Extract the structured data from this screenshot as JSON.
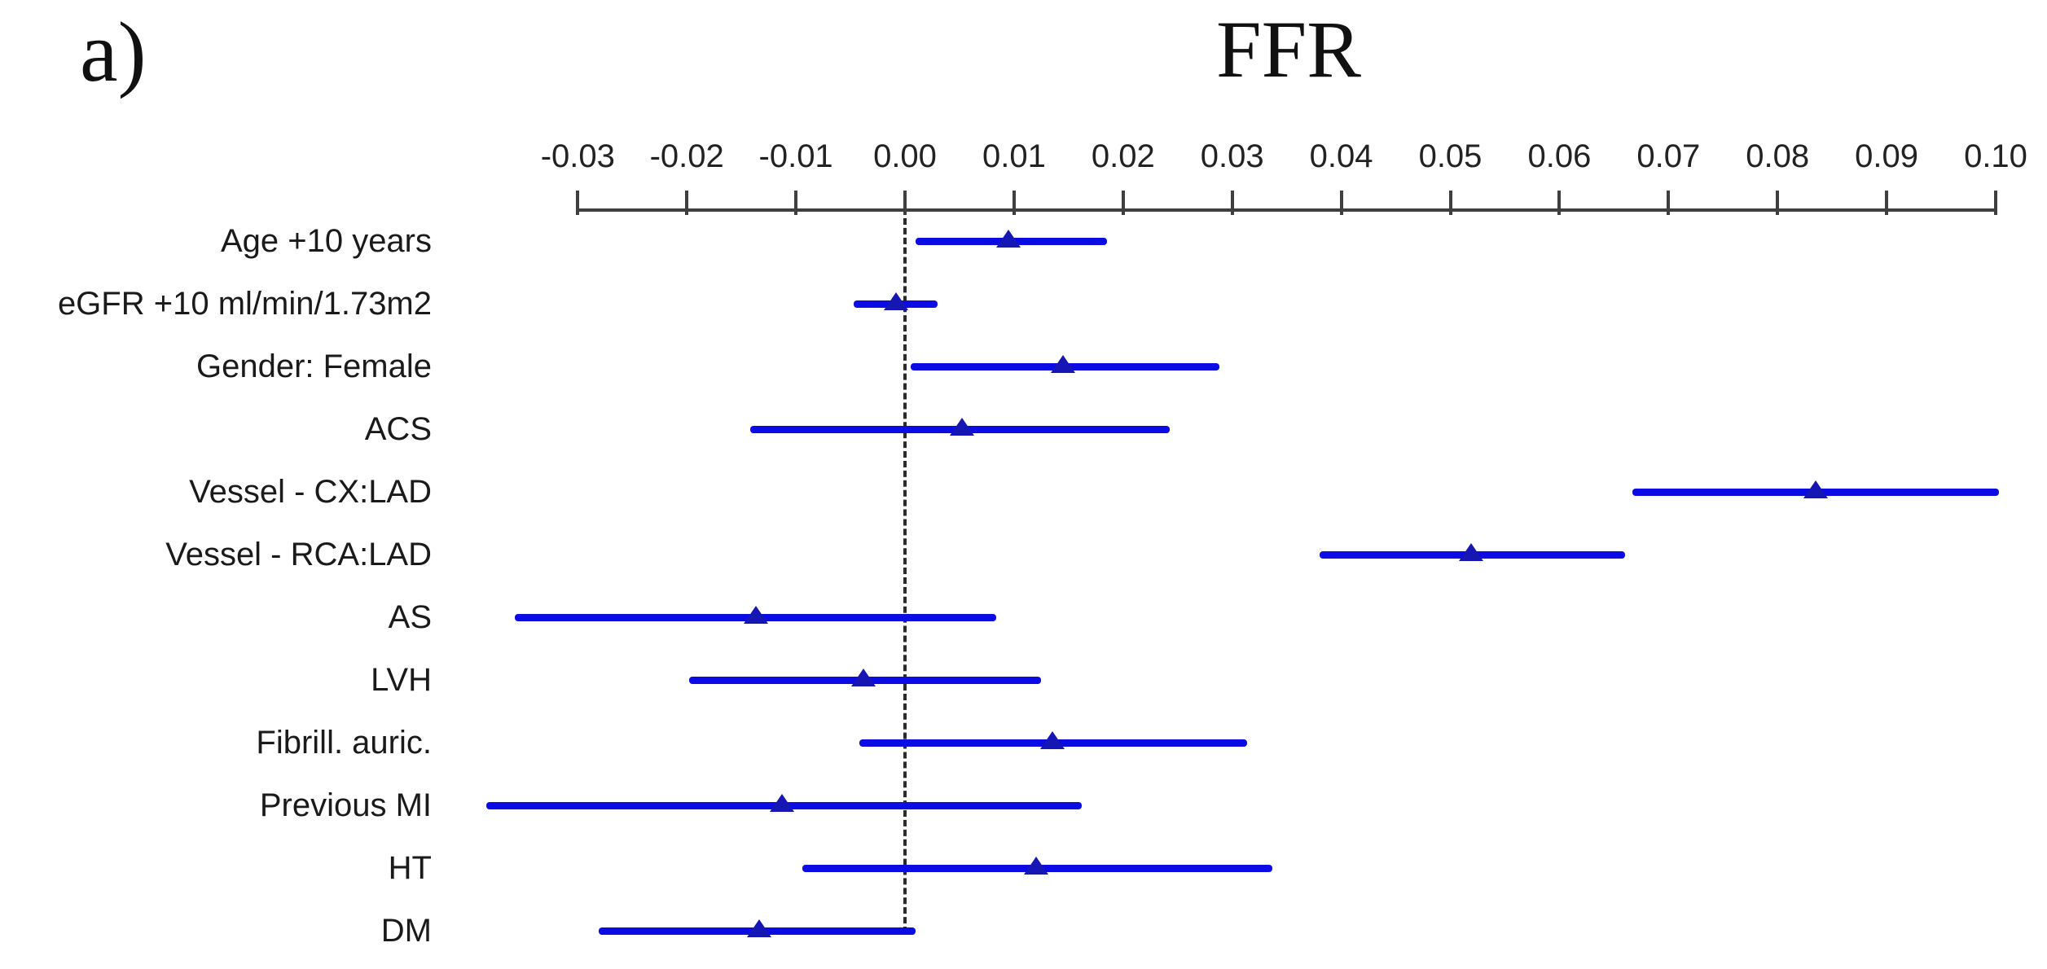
{
  "figure": {
    "panel_label": "a)"
  },
  "chart_data": {
    "type": "scatter",
    "variant": "forest-plot",
    "title": "FFR",
    "xlabel": "",
    "ylabel": "",
    "xlim": [
      -0.03,
      0.1
    ],
    "x_tick_step": 0.01,
    "x_tick_labels": [
      "-0.03",
      "-0.02",
      "-0.01",
      "0.00",
      "0.01",
      "0.02",
      "0.03",
      "0.04",
      "0.05",
      "0.06",
      "0.07",
      "0.08",
      "0.09",
      "0.10"
    ],
    "reference_line_x": 0.0,
    "grid": false,
    "legend": false,
    "marker_shape": "filled-triangle-up",
    "axis_position": "top",
    "rows": [
      {
        "label": "Age +10 years",
        "estimate": 0.0095,
        "ci_low": 0.001,
        "ci_high": 0.0185
      },
      {
        "label": "eGFR +10 ml/min/1.73m2",
        "estimate": -0.0008,
        "ci_low": -0.0047,
        "ci_high": 0.003
      },
      {
        "label": "Gender: Female",
        "estimate": 0.0145,
        "ci_low": 0.0005,
        "ci_high": 0.0288
      },
      {
        "label": "ACS",
        "estimate": 0.0052,
        "ci_low": -0.0142,
        "ci_high": 0.0243
      },
      {
        "label": "Vessel - CX:LAD",
        "estimate": 0.0835,
        "ci_low": 0.0667,
        "ci_high": 0.1003
      },
      {
        "label": "Vessel - RCA:LAD",
        "estimate": 0.0519,
        "ci_low": 0.038,
        "ci_high": 0.066
      },
      {
        "label": "AS",
        "estimate": -0.0137,
        "ci_low": -0.0358,
        "ci_high": 0.0084
      },
      {
        "label": "LVH",
        "estimate": -0.0038,
        "ci_low": -0.0198,
        "ci_high": 0.0125
      },
      {
        "label": "Fibrill. auric.",
        "estimate": 0.0135,
        "ci_low": -0.0042,
        "ci_high": 0.0314
      },
      {
        "label": "Previous MI",
        "estimate": -0.0113,
        "ci_low": -0.0384,
        "ci_high": 0.0162
      },
      {
        "label": "HT",
        "estimate": 0.012,
        "ci_low": -0.0094,
        "ci_high": 0.0337
      },
      {
        "label": "DM",
        "estimate": -0.0134,
        "ci_low": -0.0281,
        "ci_high": 0.001
      }
    ],
    "colors": {
      "ci_bar": "#0b0be4",
      "marker": "#1616b4",
      "axis": "#3f3f3f",
      "tick_text": "#222222",
      "label_text": "#1a1a1a",
      "reference_line": "#2b2b2b",
      "background": "#ffffff"
    }
  }
}
